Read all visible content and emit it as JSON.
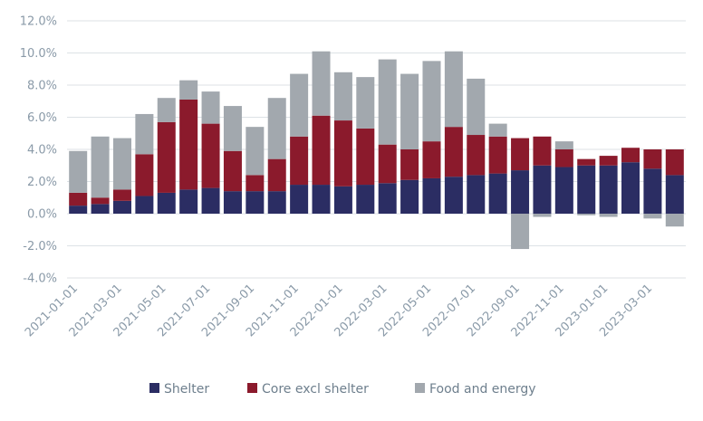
{
  "chart_data": {
    "type": "bar",
    "stacked": true,
    "title": "",
    "xlabel": "",
    "ylabel": "",
    "ylim": [
      -4,
      12
    ],
    "yticks": [
      -4,
      -2,
      0,
      2,
      4,
      6,
      8,
      10,
      12
    ],
    "ytick_labels": [
      "-4.0%",
      "-2.0%",
      "0.0%",
      "2.0%",
      "4.0%",
      "6.0%",
      "8.0%",
      "10.0%",
      "12.0%"
    ],
    "grid": true,
    "legend_position": "bottom",
    "categories": [
      "2021-01-01",
      "2021-02-01",
      "2021-03-01",
      "2021-04-01",
      "2021-05-01",
      "2021-06-01",
      "2021-07-01",
      "2021-08-01",
      "2021-09-01",
      "2021-10-01",
      "2021-11-01",
      "2021-12-01",
      "2022-01-01",
      "2022-02-01",
      "2022-03-01",
      "2022-04-01",
      "2022-05-01",
      "2022-06-01",
      "2022-07-01",
      "2022-08-01",
      "2022-09-01",
      "2022-10-01",
      "2022-11-01",
      "2022-12-01",
      "2023-01-01",
      "2023-02-01",
      "2023-03-01",
      "2023-04-01"
    ],
    "xtick_labels": [
      "2021-01-01",
      "2021-03-01",
      "2021-05-01",
      "2021-07-01",
      "2021-09-01",
      "2021-11-01",
      "2022-01-01",
      "2022-03-01",
      "2022-05-01",
      "2022-07-01",
      "2022-09-01",
      "2022-11-01",
      "2023-01-01",
      "2023-03-01"
    ],
    "series": [
      {
        "name": "Shelter",
        "color": "#2b2d63",
        "values": [
          0.5,
          0.6,
          0.8,
          1.1,
          1.3,
          1.5,
          1.6,
          1.4,
          1.4,
          1.4,
          1.8,
          1.8,
          1.7,
          1.8,
          1.9,
          2.1,
          2.2,
          2.3,
          2.4,
          2.5,
          2.7,
          3.0,
          2.9,
          3.0,
          3.0,
          3.2,
          2.8,
          2.4
        ]
      },
      {
        "name": "Core excl shelter",
        "color": "#8b1a2c",
        "values": [
          0.8,
          0.4,
          0.7,
          2.6,
          4.4,
          5.6,
          4.0,
          2.5,
          1.0,
          2.0,
          3.0,
          4.3,
          4.1,
          3.5,
          2.4,
          1.9,
          2.3,
          3.1,
          2.5,
          2.3,
          2.0,
          1.8,
          1.1,
          0.4,
          0.6,
          0.9,
          1.2,
          1.6
        ]
      },
      {
        "name": "Food and energy",
        "color": "#a2a8ae",
        "values": [
          2.6,
          3.8,
          3.2,
          2.5,
          1.5,
          1.2,
          2.0,
          2.8,
          3.0,
          3.8,
          3.9,
          4.0,
          3.0,
          3.2,
          5.3,
          4.7,
          5.0,
          4.7,
          3.5,
          0.8,
          -2.2,
          -0.2,
          0.5,
          -0.1,
          -0.2,
          0.0,
          -0.3,
          -0.8
        ]
      }
    ]
  }
}
